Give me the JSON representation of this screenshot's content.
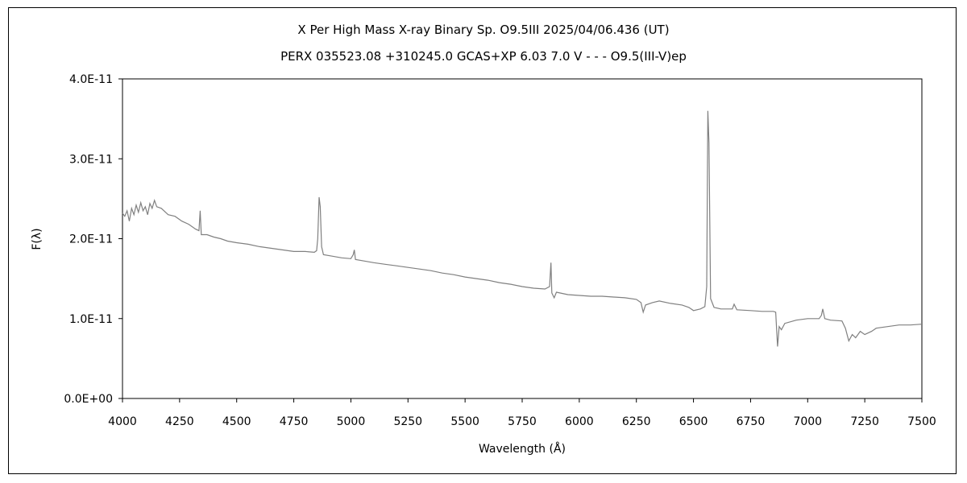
{
  "chart_data": {
    "type": "line",
    "title": "X Per    High Mass X-ray Binary    Sp. O9.5III    2025/04/06.436 (UT)",
    "subtitle": "PERX 035523.08 +310245.0 GCAS+XP 6.03 7.0 V - - - O9.5(III-V)ep",
    "xlabel": "Wavelength (Å)",
    "ylabel": "F(λ)",
    "xlim": [
      4000,
      7500
    ],
    "ylim": [
      0,
      4e-11
    ],
    "xticks": [
      4000,
      4250,
      4500,
      4750,
      5000,
      5250,
      5500,
      5750,
      6000,
      6250,
      6500,
      6750,
      7000,
      7250,
      7500
    ],
    "yticks": [
      0,
      1e-11,
      2e-11,
      3e-11,
      4e-11
    ],
    "ytick_labels": [
      "0.0E+00",
      "1.0E-11",
      "2.0E-11",
      "3.0E-11",
      "4.0E-11"
    ],
    "grid": false,
    "line_color": "#808080",
    "series": [
      {
        "x": [
          4000,
          4010,
          4020,
          4030,
          4040,
          4050,
          4060,
          4070,
          4080,
          4090,
          4100,
          4110,
          4120,
          4130,
          4140,
          4150,
          4170,
          4200,
          4230,
          4260,
          4290,
          4320,
          4335,
          4340,
          4345,
          4370,
          4400,
          4430,
          4460,
          4500,
          4550,
          4600,
          4650,
          4700,
          4750,
          4800,
          4840,
          4850,
          4855,
          4861,
          4866,
          4872,
          4880,
          4920,
          4960,
          5000,
          5010,
          5015,
          5020,
          5060,
          5100,
          5150,
          5200,
          5250,
          5300,
          5350,
          5400,
          5450,
          5500,
          5550,
          5600,
          5650,
          5700,
          5750,
          5800,
          5850,
          5870,
          5876,
          5880,
          5890,
          5900,
          5950,
          6000,
          6050,
          6100,
          6150,
          6200,
          6250,
          6270,
          6280,
          6290,
          6320,
          6350,
          6400,
          6450,
          6480,
          6500,
          6530,
          6550,
          6558,
          6563,
          6568,
          6575,
          6590,
          6620,
          6670,
          6678,
          6690,
          6750,
          6800,
          6850,
          6860,
          6868,
          6875,
          6885,
          6900,
          6950,
          7000,
          7050,
          7060,
          7066,
          7075,
          7100,
          7150,
          7165,
          7180,
          7195,
          7210,
          7230,
          7250,
          7280,
          7300,
          7350,
          7400,
          7450,
          7500
        ],
        "y": [
          2.32e-11,
          2.28e-11,
          2.35e-11,
          2.22e-11,
          2.38e-11,
          2.3e-11,
          2.42e-11,
          2.33e-11,
          2.45e-11,
          2.35e-11,
          2.4e-11,
          2.3e-11,
          2.44e-11,
          2.38e-11,
          2.48e-11,
          2.4e-11,
          2.38e-11,
          2.3e-11,
          2.28e-11,
          2.22e-11,
          2.18e-11,
          2.12e-11,
          2.1e-11,
          2.35e-11,
          2.05e-11,
          2.05e-11,
          2.02e-11,
          2e-11,
          1.97e-11,
          1.95e-11,
          1.93e-11,
          1.9e-11,
          1.88e-11,
          1.86e-11,
          1.84e-11,
          1.84e-11,
          1.83e-11,
          1.85e-11,
          2e-11,
          2.52e-11,
          2.4e-11,
          1.9e-11,
          1.8e-11,
          1.78e-11,
          1.76e-11,
          1.75e-11,
          1.8e-11,
          1.86e-11,
          1.74e-11,
          1.72e-11,
          1.7e-11,
          1.68e-11,
          1.66e-11,
          1.64e-11,
          1.62e-11,
          1.6e-11,
          1.57e-11,
          1.55e-11,
          1.52e-11,
          1.5e-11,
          1.48e-11,
          1.45e-11,
          1.43e-11,
          1.4e-11,
          1.38e-11,
          1.37e-11,
          1.4e-11,
          1.7e-11,
          1.32e-11,
          1.26e-11,
          1.33e-11,
          1.3e-11,
          1.29e-11,
          1.28e-11,
          1.28e-11,
          1.27e-11,
          1.26e-11,
          1.24e-11,
          1.2e-11,
          1.08e-11,
          1.17e-11,
          1.2e-11,
          1.22e-11,
          1.19e-11,
          1.17e-11,
          1.14e-11,
          1.1e-11,
          1.12e-11,
          1.15e-11,
          1.4e-11,
          3.6e-11,
          3.2e-11,
          1.25e-11,
          1.14e-11,
          1.12e-11,
          1.12e-11,
          1.18e-11,
          1.11e-11,
          1.1e-11,
          1.09e-11,
          1.09e-11,
          1.08e-11,
          6.5e-12,
          9e-12,
          8.6e-12,
          9.4e-12,
          9.8e-12,
          1e-11,
          1e-11,
          1.04e-11,
          1.12e-11,
          1e-11,
          9.8e-12,
          9.7e-12,
          8.8e-12,
          7.2e-12,
          8e-12,
          7.6e-12,
          8.4e-12,
          8e-12,
          8.4e-12,
          8.8e-12,
          9e-12,
          9.2e-12,
          9.2e-12,
          9.3e-12
        ]
      }
    ]
  }
}
